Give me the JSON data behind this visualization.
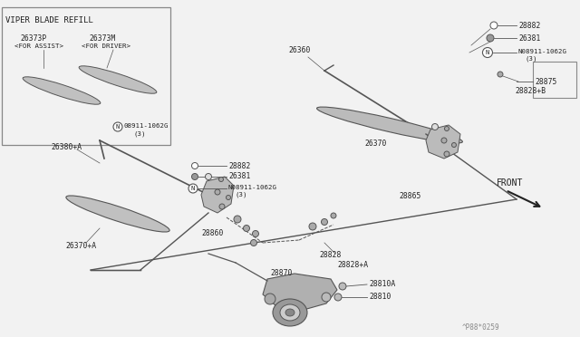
{
  "bg_color": "#f2f2f2",
  "line_color": "#555555",
  "text_color": "#222222",
  "figsize": [
    6.4,
    3.72
  ],
  "dpi": 100,
  "parts": {
    "viper_blade_refill": "VIPER BLADE REFILL",
    "p26373P": "26373P",
    "for_assist": "<FOR ASSIST>",
    "p26373M": "26373M",
    "for_driver": "<FOR DRIVER>",
    "p26380A": "26380+A",
    "p26370A": "26370+A",
    "p26360": "26360",
    "p28882_L": "28882",
    "p26381_L": "26381",
    "pN_L": "N08911-1062G",
    "pN_L3": "(3)",
    "p26370": "26370",
    "p28882_R": "28882",
    "p26381_R": "26381",
    "pN_R": "N08911-1062G",
    "pN_R3": "(3)",
    "p28875": "28875",
    "p28828B": "28828+B",
    "p28860": "28860",
    "p28865": "28865",
    "p28828": "28828",
    "p28828A": "28828+A",
    "p28870": "28870",
    "p28810A": "28810A",
    "p28810": "28810",
    "front": "FRONT",
    "code": "^P88*0259"
  }
}
